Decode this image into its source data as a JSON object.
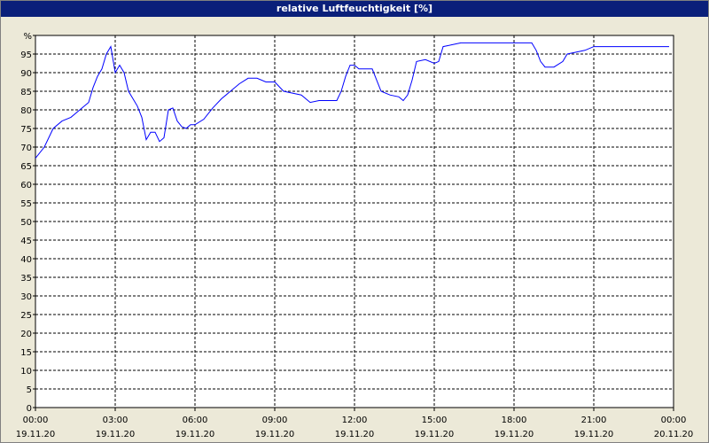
{
  "chart_data": {
    "type": "line",
    "title": "relative Luftfeuchtigkeit [%]",
    "x": [
      "19.11.20 00:00",
      "19.11.20 00:20",
      "19.11.20 00:40",
      "19.11.20 01:00",
      "19.11.20 01:20",
      "19.11.20 01:40",
      "19.11.20 02:00",
      "19.11.20 02:10",
      "19.11.20 02:20",
      "19.11.20 02:30",
      "19.11.20 02:40",
      "19.11.20 02:50",
      "19.11.20 03:00",
      "19.11.20 03:10",
      "19.11.20 03:20",
      "19.11.20 03:30",
      "19.11.20 03:40",
      "19.11.20 03:50",
      "19.11.20 04:00",
      "19.11.20 04:10",
      "19.11.20 04:20",
      "19.11.20 04:30",
      "19.11.20 04:40",
      "19.11.20 04:50",
      "19.11.20 05:00",
      "19.11.20 05:10",
      "19.11.20 05:20",
      "19.11.20 05:30",
      "19.11.20 05:40",
      "19.11.20 05:50",
      "19.11.20 06:00",
      "19.11.20 06:20",
      "19.11.20 06:40",
      "19.11.20 07:00",
      "19.11.20 07:20",
      "19.11.20 07:40",
      "19.11.20 08:00",
      "19.11.20 08:20",
      "19.11.20 08:40",
      "19.11.20 09:00",
      "19.11.20 09:20",
      "19.11.20 09:40",
      "19.11.20 10:00",
      "19.11.20 10:20",
      "19.11.20 10:40",
      "19.11.20 11:00",
      "19.11.20 11:20",
      "19.11.20 11:30",
      "19.11.20 11:40",
      "19.11.20 11:50",
      "19.11.20 12:00",
      "19.11.20 12:10",
      "19.11.20 12:40",
      "19.11.20 13:00",
      "19.11.20 13:20",
      "19.11.20 13:40",
      "19.11.20 13:50",
      "19.11.20 14:00",
      "19.11.20 14:10",
      "19.11.20 14:20",
      "19.11.20 14:40",
      "19.11.20 15:00",
      "19.11.20 15:10",
      "19.11.20 15:20",
      "19.11.20 15:40",
      "19.11.20 16:00",
      "19.11.20 18:40",
      "19.11.20 18:50",
      "19.11.20 19:00",
      "19.11.20 19:10",
      "19.11.20 19:30",
      "19.11.20 19:50",
      "19.11.20 20:00",
      "19.11.20 20:20",
      "19.11.20 20:40",
      "19.11.20 21:00",
      "19.11.20 23:50"
    ],
    "series": [
      {
        "color": "#0000ff",
        "values": [
          67,
          70,
          75,
          77,
          78,
          80,
          82,
          86,
          89,
          91,
          95,
          97,
          90,
          92,
          90,
          85,
          83,
          81,
          78,
          72,
          74,
          74,
          71.5,
          72.5,
          80,
          80.5,
          77,
          75.5,
          75,
          76,
          76,
          77.5,
          80.5,
          83,
          85,
          87,
          88.5,
          88.5,
          87.5,
          87.5,
          85,
          84.5,
          84,
          82,
          82.5,
          82.5,
          82.5,
          85,
          89,
          92,
          92,
          91,
          91,
          85,
          84,
          83.5,
          82.5,
          84,
          88,
          93,
          93.5,
          92.5,
          93,
          97,
          97.5,
          98,
          98,
          96,
          93,
          91.5,
          91.5,
          93,
          95,
          95.5,
          96,
          97,
          97
        ]
      }
    ],
    "xlim": [
      "19.11.20 00:00",
      "20.11.20 00:00"
    ],
    "xticks": [
      "19.11.20 00:00",
      "19.11.20 03:00",
      "19.11.20 06:00",
      "19.11.20 09:00",
      "19.11.20 12:00",
      "19.11.20 15:00",
      "19.11.20 18:00",
      "19.11.20 21:00",
      "20.11.20 00:00"
    ],
    "ylim": [
      0,
      100
    ],
    "yticks": [
      0,
      5,
      10,
      15,
      20,
      25,
      30,
      35,
      40,
      45,
      50,
      55,
      60,
      65,
      70,
      75,
      80,
      85,
      90,
      95,
      {
        "value": 100,
        "label": "%"
      }
    ],
    "grid": true
  }
}
